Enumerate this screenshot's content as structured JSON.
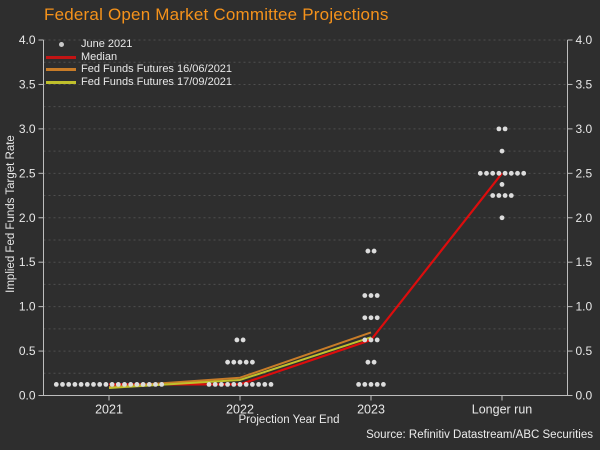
{
  "title": "Federal Open Market Committee Projections",
  "source": "Source: Refinitiv Datastream/ABC Securities",
  "colors": {
    "background": "#2e2e2e",
    "title": "#f5921b",
    "text": "#e8e8e8",
    "grid": "#4f4f4f",
    "axis": "#bdbdbd",
    "dot": "#dcdcdc",
    "median": "#dc0d0d",
    "futures_jun": "#c87c28",
    "futures_sep": "#c0c02c"
  },
  "legend": [
    {
      "label": "June 2021",
      "marker": "dot",
      "color": "#c9c9c9"
    },
    {
      "label": "Median",
      "marker": "line",
      "color": "#c21414"
    },
    {
      "label": "Fed Funds Futures 16/06/2021",
      "marker": "line",
      "color": "#c87c28"
    },
    {
      "label": "Fed Funds Futures 17/09/2021",
      "marker": "line",
      "color": "#c0c02c"
    }
  ],
  "chart_data": {
    "type": "scatter",
    "title": "Federal Open Market Committee Projections",
    "xlabel": "Projection Year End",
    "ylabel": "Implied Fed Funds Target Rate",
    "categories": [
      "2021",
      "2022",
      "2023",
      "Longer run"
    ],
    "ylim": [
      0,
      4
    ],
    "yticks": [
      "0.0",
      "0.5",
      "1.0",
      "1.5",
      "2.0",
      "2.5",
      "3.0",
      "3.5",
      "4.0"
    ],
    "grid_step": 0.25,
    "grid": "dashed",
    "legend_position": "upper-left",
    "dot_clusters": [
      {
        "category": "2021",
        "dots": [
          {
            "value": 0.125,
            "count": 18
          }
        ]
      },
      {
        "category": "2022",
        "dots": [
          {
            "value": 0.125,
            "count": 11
          },
          {
            "value": 0.375,
            "count": 5
          },
          {
            "value": 0.625,
            "count": 2
          }
        ]
      },
      {
        "category": "2023",
        "dots": [
          {
            "value": 0.125,
            "count": 5
          },
          {
            "value": 0.375,
            "count": 2
          },
          {
            "value": 0.625,
            "count": 3
          },
          {
            "value": 0.875,
            "count": 3
          },
          {
            "value": 1.125,
            "count": 3
          },
          {
            "value": 1.625,
            "count": 2
          }
        ]
      },
      {
        "category": "Longer run",
        "dots": [
          {
            "value": 2.0,
            "count": 1
          },
          {
            "value": 2.25,
            "count": 4
          },
          {
            "value": 2.375,
            "count": 1
          },
          {
            "value": 2.5,
            "count": 8
          },
          {
            "value": 2.75,
            "count": 1
          },
          {
            "value": 3.0,
            "count": 2
          }
        ]
      }
    ],
    "series": [
      {
        "name": "Median",
        "key": "median",
        "categories": [
          "2021",
          "2022",
          "2023",
          "Longer run"
        ],
        "values": [
          0.125,
          0.125,
          0.625,
          2.5
        ]
      },
      {
        "name": "Fed Funds Futures 16/06/2021",
        "key": "futures_jun",
        "categories": [
          "2021",
          "2022",
          "2023"
        ],
        "values": [
          0.095,
          0.2,
          0.71
        ]
      },
      {
        "name": "Fed Funds Futures 17/09/2021",
        "key": "futures_sep",
        "categories": [
          "2021",
          "2022",
          "2023"
        ],
        "values": [
          0.085,
          0.175,
          0.655
        ]
      }
    ]
  }
}
